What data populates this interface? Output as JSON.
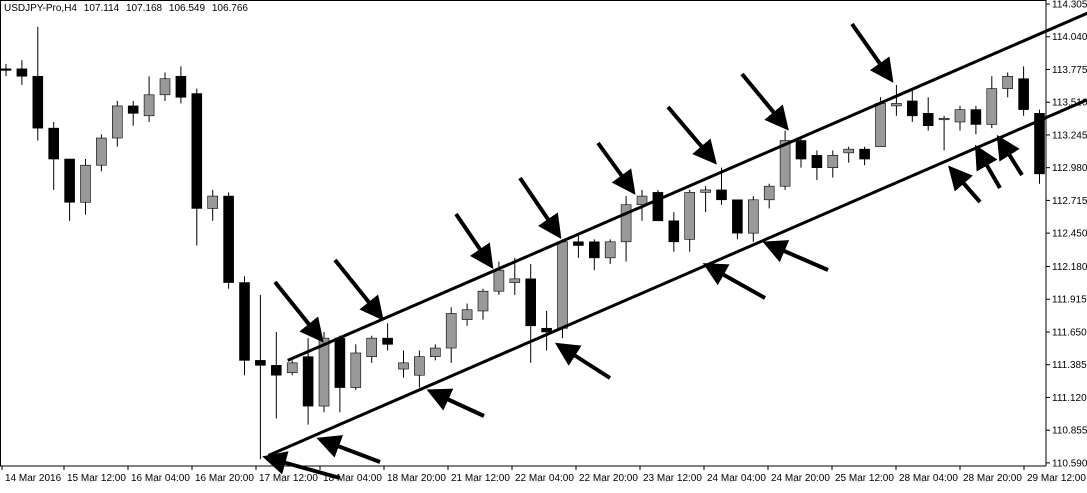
{
  "header": {
    "symbol": "USDJPY-Pro,H4",
    "open": "107.114",
    "high": "107.168",
    "low": "106.549",
    "close": "106.766"
  },
  "colors": {
    "bull": "#999999",
    "bear": "#000000",
    "wick": "#000000",
    "background": "#ffffff",
    "axis": "#000000"
  },
  "chart_data": {
    "type": "candlestick",
    "title": "USDJPY-Pro,H4",
    "ylim": [
      110.565,
      114.305
    ],
    "y_ticks": [
      "114.305",
      "114.040",
      "113.775",
      "113.510",
      "113.245",
      "112.980",
      "112.715",
      "112.450",
      "112.180",
      "111.915",
      "111.650",
      "111.385",
      "111.120",
      "110.855",
      "110.590"
    ],
    "x_ticks": [
      "14 Mar 2016",
      "15 Mar 12:00",
      "16 Mar 04:00",
      "16 Mar 20:00",
      "17 Mar 12:00",
      "18 Mar 04:00",
      "18 Mar 20:00",
      "21 Mar 12:00",
      "22 Mar 04:00",
      "22 Mar 20:00",
      "23 Mar 12:00",
      "24 Mar 04:00",
      "24 Mar 20:00",
      "25 Mar 12:00",
      "28 Mar 04:00",
      "28 Mar 20:00",
      "29 Mar 12:00"
    ],
    "candles": [
      {
        "o": 113.78,
        "h": 113.82,
        "l": 113.72,
        "c": 113.77
      },
      {
        "o": 113.78,
        "h": 113.85,
        "l": 113.65,
        "c": 113.72
      },
      {
        "o": 113.72,
        "h": 114.12,
        "l": 113.2,
        "c": 113.3
      },
      {
        "o": 113.3,
        "h": 113.35,
        "l": 112.8,
        "c": 113.05
      },
      {
        "o": 113.05,
        "h": 113.05,
        "l": 112.55,
        "c": 112.7
      },
      {
        "o": 112.7,
        "h": 113.05,
        "l": 112.6,
        "c": 113.0
      },
      {
        "o": 113.0,
        "h": 113.25,
        "l": 112.95,
        "c": 113.22
      },
      {
        "o": 113.22,
        "h": 113.52,
        "l": 113.15,
        "c": 113.48
      },
      {
        "o": 113.48,
        "h": 113.52,
        "l": 113.32,
        "c": 113.42
      },
      {
        "o": 113.4,
        "h": 113.72,
        "l": 113.35,
        "c": 113.57
      },
      {
        "o": 113.57,
        "h": 113.75,
        "l": 113.52,
        "c": 113.7
      },
      {
        "o": 113.72,
        "h": 113.8,
        "l": 113.5,
        "c": 113.55
      },
      {
        "o": 113.58,
        "h": 113.62,
        "l": 112.35,
        "c": 112.65
      },
      {
        "o": 112.65,
        "h": 112.8,
        "l": 112.55,
        "c": 112.75
      },
      {
        "o": 112.75,
        "h": 112.78,
        "l": 112.0,
        "c": 112.05
      },
      {
        "o": 112.05,
        "h": 112.1,
        "l": 111.3,
        "c": 111.42
      },
      {
        "o": 111.42,
        "h": 111.95,
        "l": 110.62,
        "c": 111.38
      },
      {
        "o": 111.38,
        "h": 111.65,
        "l": 110.95,
        "c": 111.3
      },
      {
        "o": 111.32,
        "h": 111.42,
        "l": 111.3,
        "c": 111.4
      },
      {
        "o": 111.45,
        "h": 111.6,
        "l": 110.9,
        "c": 111.05
      },
      {
        "o": 111.05,
        "h": 111.65,
        "l": 111.0,
        "c": 111.6
      },
      {
        "o": 111.6,
        "h": 111.62,
        "l": 111.0,
        "c": 111.2
      },
      {
        "o": 111.2,
        "h": 111.55,
        "l": 111.18,
        "c": 111.48
      },
      {
        "o": 111.45,
        "h": 111.62,
        "l": 111.4,
        "c": 111.6
      },
      {
        "o": 111.6,
        "h": 111.72,
        "l": 111.5,
        "c": 111.55
      },
      {
        "o": 111.35,
        "h": 111.5,
        "l": 111.28,
        "c": 111.4
      },
      {
        "o": 111.3,
        "h": 111.5,
        "l": 111.2,
        "c": 111.45
      },
      {
        "o": 111.45,
        "h": 111.55,
        "l": 111.42,
        "c": 111.52
      },
      {
        "o": 111.52,
        "h": 111.85,
        "l": 111.4,
        "c": 111.8
      },
      {
        "o": 111.75,
        "h": 111.88,
        "l": 111.7,
        "c": 111.83
      },
      {
        "o": 111.82,
        "h": 112.0,
        "l": 111.75,
        "c": 111.98
      },
      {
        "o": 111.98,
        "h": 112.22,
        "l": 111.95,
        "c": 112.15
      },
      {
        "o": 112.05,
        "h": 112.25,
        "l": 111.95,
        "c": 112.08
      },
      {
        "o": 112.08,
        "h": 112.2,
        "l": 111.4,
        "c": 111.7
      },
      {
        "o": 111.68,
        "h": 111.82,
        "l": 111.5,
        "c": 111.65
      },
      {
        "o": 111.68,
        "h": 112.4,
        "l": 111.6,
        "c": 112.38
      },
      {
        "o": 112.38,
        "h": 112.45,
        "l": 112.25,
        "c": 112.35
      },
      {
        "o": 112.38,
        "h": 112.4,
        "l": 112.15,
        "c": 112.25
      },
      {
        "o": 112.25,
        "h": 112.4,
        "l": 112.2,
        "c": 112.38
      },
      {
        "o": 112.38,
        "h": 112.75,
        "l": 112.22,
        "c": 112.68
      },
      {
        "o": 112.68,
        "h": 112.8,
        "l": 112.55,
        "c": 112.75
      },
      {
        "o": 112.78,
        "h": 112.8,
        "l": 112.55,
        "c": 112.55
      },
      {
        "o": 112.55,
        "h": 112.62,
        "l": 112.3,
        "c": 112.38
      },
      {
        "o": 112.4,
        "h": 112.8,
        "l": 112.3,
        "c": 112.78
      },
      {
        "o": 112.78,
        "h": 112.83,
        "l": 112.62,
        "c": 112.8
      },
      {
        "o": 112.8,
        "h": 112.98,
        "l": 112.68,
        "c": 112.72
      },
      {
        "o": 112.72,
        "h": 112.72,
        "l": 112.4,
        "c": 112.45
      },
      {
        "o": 112.45,
        "h": 112.75,
        "l": 112.38,
        "c": 112.72
      },
      {
        "o": 112.72,
        "h": 112.85,
        "l": 112.65,
        "c": 112.83
      },
      {
        "o": 112.83,
        "h": 113.28,
        "l": 112.8,
        "c": 113.2
      },
      {
        "o": 113.2,
        "h": 113.22,
        "l": 112.98,
        "c": 113.05
      },
      {
        "o": 113.08,
        "h": 113.12,
        "l": 112.88,
        "c": 112.98
      },
      {
        "o": 112.98,
        "h": 113.12,
        "l": 112.9,
        "c": 113.08
      },
      {
        "o": 113.1,
        "h": 113.15,
        "l": 113.02,
        "c": 113.13
      },
      {
        "o": 113.13,
        "h": 113.15,
        "l": 113.0,
        "c": 113.05
      },
      {
        "o": 113.15,
        "h": 113.55,
        "l": 113.15,
        "c": 113.5
      },
      {
        "o": 113.48,
        "h": 113.65,
        "l": 113.4,
        "c": 113.5
      },
      {
        "o": 113.52,
        "h": 113.62,
        "l": 113.35,
        "c": 113.4
      },
      {
        "o": 113.42,
        "h": 113.55,
        "l": 113.28,
        "c": 113.32
      },
      {
        "o": 113.38,
        "h": 113.4,
        "l": 113.12,
        "c": 113.38
      },
      {
        "o": 113.35,
        "h": 113.48,
        "l": 113.28,
        "c": 113.45
      },
      {
        "o": 113.45,
        "h": 113.48,
        "l": 113.25,
        "c": 113.33
      },
      {
        "o": 113.33,
        "h": 113.72,
        "l": 113.3,
        "c": 113.62
      },
      {
        "o": 113.62,
        "h": 113.75,
        "l": 113.55,
        "c": 113.72
      },
      {
        "o": 113.7,
        "h": 113.8,
        "l": 113.4,
        "c": 113.45
      },
      {
        "o": 113.42,
        "h": 113.45,
        "l": 112.85,
        "c": 112.93
      }
    ],
    "trendlines": [
      {
        "name": "upper-channel",
        "points": [
          [
            17.72,
            111.42
          ],
          [
            68.0,
            114.23
          ]
        ]
      },
      {
        "name": "lower-channel",
        "points": [
          [
            16.5,
            110.65
          ],
          [
            68.0,
            113.53
          ]
        ]
      }
    ],
    "grid": false,
    "legend": "none"
  }
}
